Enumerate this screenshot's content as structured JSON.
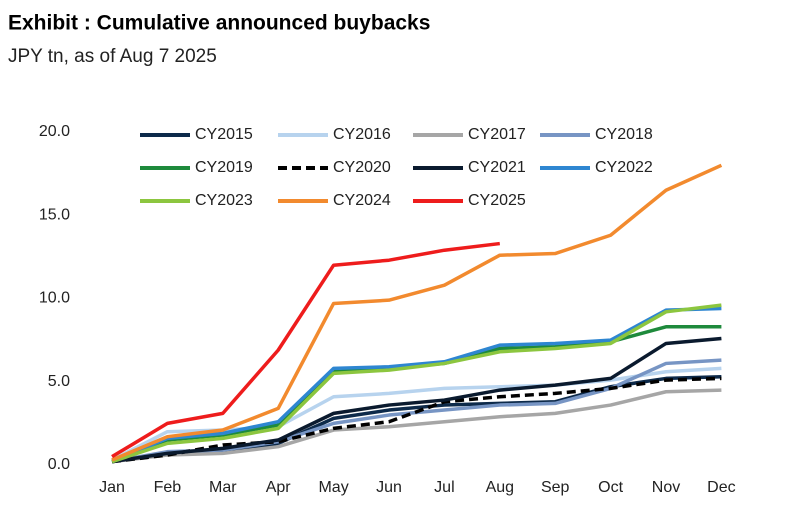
{
  "chart_data": {
    "type": "line",
    "title": "Exhibit   : Cumulative announced buybacks",
    "subtitle": "JPY tn, as of Aug 7 2025",
    "categories": [
      "Jan",
      "Feb",
      "Mar",
      "Apr",
      "May",
      "Jun",
      "Jul",
      "Aug",
      "Sep",
      "Oct",
      "Nov",
      "Dec"
    ],
    "ylim": [
      0,
      20
    ],
    "yticks": [
      {
        "value": 0,
        "label": "0.0"
      },
      {
        "value": 5,
        "label": "5.0"
      },
      {
        "value": 10,
        "label": "10.0"
      },
      {
        "value": 15,
        "label": "15.0"
      },
      {
        "value": 20,
        "label": "20.0"
      }
    ],
    "grid": false,
    "legend": "top",
    "series": [
      {
        "name": "CY2015",
        "color": "#0d2a4a",
        "values": [
          0.2,
          0.7,
          0.8,
          1.3,
          2.8,
          3.3,
          3.6,
          3.7,
          3.8,
          4.7,
          5.2,
          5.3
        ]
      },
      {
        "name": "CY2016",
        "color": "#b7d3ee",
        "values": [
          0.3,
          2.0,
          2.1,
          2.3,
          4.1,
          4.3,
          4.6,
          4.7,
          4.8,
          5.1,
          5.6,
          5.8
        ]
      },
      {
        "name": "CY2017",
        "color": "#a6a6a6",
        "values": [
          0.2,
          0.6,
          0.7,
          1.1,
          2.1,
          2.3,
          2.6,
          2.9,
          3.1,
          3.6,
          4.4,
          4.5
        ]
      },
      {
        "name": "CY2018",
        "color": "#7795c4",
        "values": [
          0.2,
          0.8,
          0.9,
          1.4,
          2.5,
          3.0,
          3.3,
          3.6,
          3.7,
          4.6,
          6.1,
          6.3
        ]
      },
      {
        "name": "CY2019",
        "color": "#1e8a3c",
        "values": [
          0.2,
          1.5,
          1.8,
          2.4,
          5.6,
          5.8,
          6.1,
          7.0,
          7.1,
          7.4,
          8.3,
          8.3
        ]
      },
      {
        "name": "CY2020",
        "color": "#000000",
        "dashed": true,
        "values": [
          0.2,
          0.6,
          1.2,
          1.4,
          2.2,
          2.6,
          3.8,
          4.1,
          4.3,
          4.6,
          5.1,
          5.2
        ]
      },
      {
        "name": "CY2021",
        "color": "#0a1a2e",
        "values": [
          0.2,
          0.7,
          1.0,
          1.5,
          3.1,
          3.6,
          3.9,
          4.5,
          4.8,
          5.2,
          7.3,
          7.6
        ]
      },
      {
        "name": "CY2022",
        "color": "#2e86d1",
        "values": [
          0.2,
          1.6,
          1.9,
          2.6,
          5.8,
          5.9,
          6.2,
          7.2,
          7.3,
          7.5,
          9.3,
          9.4
        ]
      },
      {
        "name": "CY2023",
        "color": "#8cc63f",
        "values": [
          0.2,
          1.3,
          1.6,
          2.2,
          5.5,
          5.7,
          6.1,
          6.8,
          7.0,
          7.3,
          9.2,
          9.6
        ]
      },
      {
        "name": "CY2024",
        "color": "#f28a2e",
        "values": [
          0.3,
          1.7,
          2.1,
          3.4,
          9.7,
          9.9,
          10.8,
          12.6,
          12.7,
          13.8,
          16.5,
          18.0
        ]
      },
      {
        "name": "CY2025",
        "color": "#ee1c1c",
        "values": [
          0.5,
          2.5,
          3.1,
          6.9,
          12.0,
          12.3,
          12.9,
          13.3,
          null,
          null,
          null,
          null
        ]
      }
    ]
  }
}
